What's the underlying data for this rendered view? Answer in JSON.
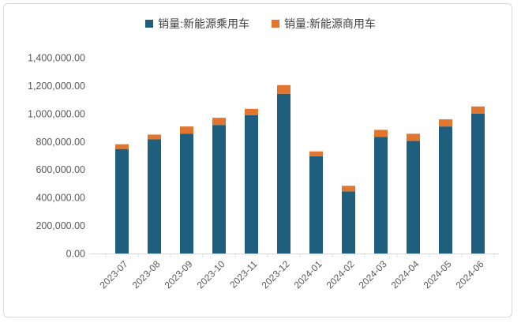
{
  "chart_data": {
    "type": "bar",
    "stacked": true,
    "title": "",
    "xlabel": "",
    "ylabel": "",
    "grid": false,
    "legend_position": "top",
    "axis_color": "#d9d9d9",
    "tick_text_color": "#595959",
    "categories": [
      "2023-07",
      "2023-08",
      "2023-09",
      "2023-10",
      "2023-11",
      "2023-12",
      "2024-01",
      "2024-02",
      "2024-03",
      "2024-04",
      "2024-05",
      "2024-06"
    ],
    "series": [
      {
        "name": "销量:新能源乘用车",
        "color": "#1f5e7c",
        "values": [
          747000,
          816000,
          857000,
          919000,
          988000,
          1142000,
          696000,
          444000,
          833000,
          805000,
          908000,
          1000000
        ]
      },
      {
        "name": "销量:新能源商用车",
        "color": "#e2762e",
        "values": [
          34000,
          34000,
          51000,
          51000,
          46000,
          62000,
          34000,
          40000,
          51000,
          51000,
          51000,
          51000
        ]
      }
    ],
    "stack_totals": [
      781000,
      850000,
      908000,
      970000,
      1034000,
      1204000,
      730000,
      484000,
      884000,
      856000,
      959000,
      1051000
    ],
    "ylim": [
      0,
      1400000
    ],
    "ytick_interval": 200000,
    "ytick_labels": [
      "0.00",
      "200,000.00",
      "400,000.00",
      "600,000.00",
      "800,000.00",
      "1,000,000.00",
      "1,200,000.00",
      "1,400,000.00"
    ]
  }
}
